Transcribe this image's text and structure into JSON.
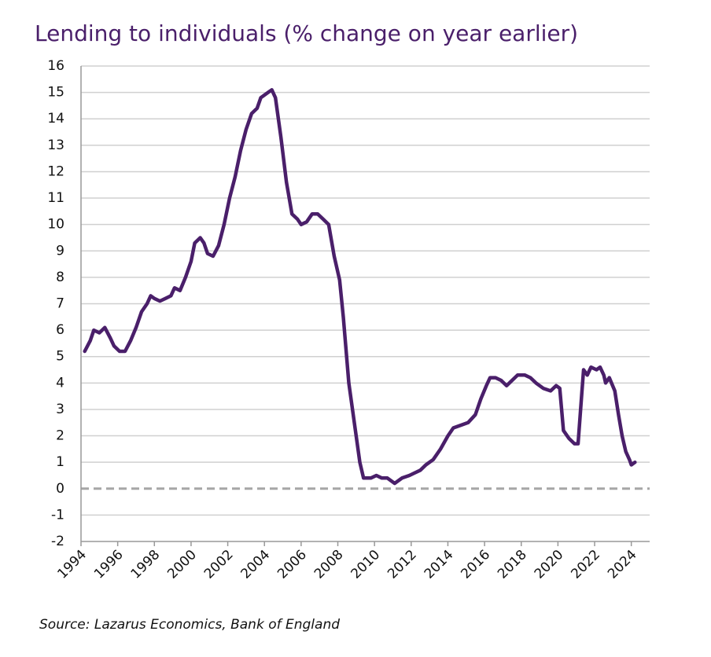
{
  "chart_data": {
    "type": "line",
    "title": "Lending to individuals (% change on year earlier)",
    "source": "Source: Lazarus Economics, Bank of England",
    "color": "#4a1f6a",
    "grid": true,
    "x": [
      1994.2,
      1994.5,
      1994.7,
      1995.0,
      1995.3,
      1995.6,
      1995.8,
      1996.1,
      1996.4,
      1996.7,
      1997.0,
      1997.3,
      1997.6,
      1997.8,
      1998.0,
      1998.3,
      1998.6,
      1998.9,
      1999.1,
      1999.4,
      1999.7,
      2000.0,
      2000.2,
      2000.5,
      2000.7,
      2000.9,
      2001.2,
      2001.5,
      2001.8,
      2002.1,
      2002.4,
      2002.7,
      2003.0,
      2003.3,
      2003.6,
      2003.8,
      2004.2,
      2004.4,
      2004.6,
      2004.9,
      2005.2,
      2005.5,
      2005.8,
      2006.0,
      2006.3,
      2006.6,
      2006.9,
      2007.2,
      2007.5,
      2007.8,
      2008.1,
      2008.3,
      2008.6,
      2008.9,
      2009.2,
      2009.4,
      2009.8,
      2010.1,
      2010.4,
      2010.7,
      2011.1,
      2011.5,
      2011.9,
      2012.2,
      2012.5,
      2012.8,
      2013.2,
      2013.6,
      2014.0,
      2014.3,
      2014.7,
      2015.1,
      2015.5,
      2015.8,
      2016.1,
      2016.3,
      2016.6,
      2016.9,
      2017.2,
      2017.5,
      2017.8,
      2018.2,
      2018.5,
      2018.8,
      2019.2,
      2019.6,
      2019.9,
      2020.1,
      2020.3,
      2020.6,
      2020.9,
      2021.1,
      2021.3,
      2021.4,
      2021.6,
      2021.8,
      2022.1,
      2022.3,
      2022.5,
      2022.6,
      2022.8,
      2023.1,
      2023.3,
      2023.5,
      2023.7,
      2023.9,
      2024.0,
      2024.2
    ],
    "values": [
      5.2,
      5.6,
      6.0,
      5.9,
      6.1,
      5.7,
      5.4,
      5.2,
      5.2,
      5.6,
      6.1,
      6.7,
      7.0,
      7.3,
      7.2,
      7.1,
      7.2,
      7.3,
      7.6,
      7.5,
      8.0,
      8.6,
      9.3,
      9.5,
      9.3,
      8.9,
      8.8,
      9.2,
      10.0,
      11.0,
      11.8,
      12.8,
      13.6,
      14.2,
      14.4,
      14.8,
      15.0,
      15.1,
      14.8,
      13.3,
      11.6,
      10.4,
      10.2,
      10.0,
      10.1,
      10.4,
      10.4,
      10.2,
      10.0,
      8.8,
      7.9,
      6.5,
      4.0,
      2.5,
      1.0,
      0.4,
      0.4,
      0.5,
      0.4,
      0.4,
      0.2,
      0.4,
      0.5,
      0.6,
      0.7,
      0.9,
      1.1,
      1.5,
      2.0,
      2.3,
      2.4,
      2.5,
      2.8,
      3.4,
      3.9,
      4.2,
      4.2,
      4.1,
      3.9,
      4.1,
      4.3,
      4.3,
      4.2,
      4.0,
      3.8,
      3.7,
      3.9,
      3.8,
      2.2,
      1.9,
      1.7,
      1.7,
      3.6,
      4.5,
      4.3,
      4.6,
      4.5,
      4.6,
      4.3,
      4.0,
      4.2,
      3.7,
      2.8,
      2.0,
      1.4,
      1.1,
      0.9,
      1.0
    ],
    "xlim": [
      1994,
      2025
    ],
    "xticks": [
      1994,
      1996,
      1998,
      2000,
      2002,
      2004,
      2006,
      2008,
      2010,
      2012,
      2014,
      2016,
      2018,
      2020,
      2022,
      2024
    ],
    "ylim": [
      -2,
      16
    ],
    "yticks": [
      -2,
      -1,
      0,
      1,
      2,
      3,
      4,
      5,
      6,
      7,
      8,
      9,
      10,
      11,
      12,
      13,
      14,
      15,
      16
    ]
  }
}
